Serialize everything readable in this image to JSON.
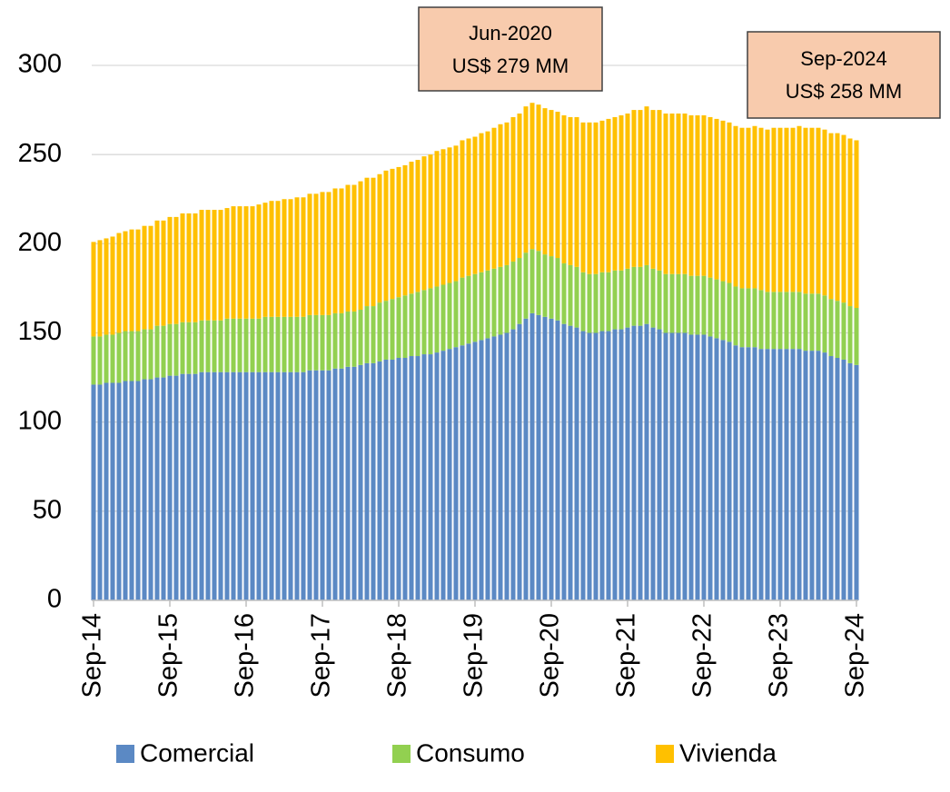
{
  "chart_data": {
    "type": "stacked-bar",
    "categories": [
      "Sep-14",
      null,
      null,
      null,
      null,
      null,
      null,
      null,
      null,
      null,
      null,
      null,
      "Sep-15",
      null,
      null,
      null,
      null,
      null,
      null,
      null,
      null,
      null,
      null,
      null,
      "Sep-16",
      null,
      null,
      null,
      null,
      null,
      null,
      null,
      null,
      null,
      null,
      null,
      "Sep-17",
      null,
      null,
      null,
      null,
      null,
      null,
      null,
      null,
      null,
      null,
      null,
      "Sep-18",
      null,
      null,
      null,
      null,
      null,
      null,
      null,
      null,
      null,
      null,
      null,
      "Sep-19",
      null,
      null,
      null,
      null,
      null,
      null,
      null,
      null,
      null,
      null,
      null,
      "Sep-20",
      null,
      null,
      null,
      null,
      null,
      null,
      null,
      null,
      null,
      null,
      null,
      "Sep-21",
      null,
      null,
      null,
      null,
      null,
      null,
      null,
      null,
      null,
      null,
      null,
      "Sep-22",
      null,
      null,
      null,
      null,
      null,
      null,
      null,
      null,
      null,
      null,
      null,
      "Sep-23",
      null,
      null,
      null,
      null,
      null,
      null,
      null,
      null,
      null,
      null,
      null,
      "Sep-24"
    ],
    "series": [
      {
        "name": "Comercial",
        "color": "#5b89c4",
        "values": [
          121,
          121,
          122,
          122,
          122,
          123,
          123,
          123,
          124,
          124,
          125,
          125,
          126,
          126,
          127,
          127,
          127,
          128,
          128,
          128,
          128,
          128,
          128,
          128,
          128,
          128,
          128,
          128,
          128,
          128,
          128,
          128,
          128,
          128,
          129,
          129,
          129,
          129,
          130,
          130,
          131,
          131,
          132,
          133,
          133,
          134,
          135,
          135,
          136,
          136,
          137,
          137,
          138,
          138,
          139,
          140,
          141,
          142,
          143,
          144,
          145,
          146,
          147,
          148,
          149,
          150,
          152,
          155,
          158,
          161,
          160,
          159,
          158,
          157,
          155,
          154,
          153,
          151,
          150,
          150,
          151,
          151,
          152,
          152,
          153,
          154,
          154,
          155,
          153,
          152,
          150,
          150,
          150,
          150,
          149,
          149,
          149,
          148,
          147,
          146,
          145,
          143,
          142,
          142,
          142,
          141,
          141,
          141,
          141,
          141,
          141,
          141,
          140,
          140,
          140,
          139,
          137,
          136,
          135,
          133,
          132
        ]
      },
      {
        "name": "Consumo",
        "color": "#92d050",
        "values": [
          27,
          27,
          27,
          27,
          28,
          28,
          28,
          28,
          28,
          28,
          29,
          29,
          29,
          29,
          29,
          29,
          29,
          29,
          29,
          29,
          29,
          30,
          30,
          30,
          30,
          30,
          30,
          31,
          31,
          31,
          31,
          31,
          31,
          31,
          31,
          31,
          31,
          31,
          31,
          31,
          31,
          31,
          31,
          32,
          32,
          33,
          33,
          34,
          34,
          35,
          35,
          36,
          36,
          37,
          37,
          37,
          37,
          37,
          38,
          38,
          38,
          38,
          38,
          38,
          38,
          38,
          38,
          37,
          37,
          36,
          36,
          35,
          35,
          35,
          34,
          34,
          34,
          33,
          33,
          33,
          33,
          33,
          33,
          33,
          33,
          33,
          33,
          33,
          33,
          33,
          33,
          33,
          33,
          33,
          33,
          33,
          33,
          33,
          33,
          33,
          33,
          33,
          33,
          33,
          33,
          33,
          32,
          32,
          32,
          32,
          32,
          32,
          32,
          32,
          32,
          32,
          32,
          32,
          32,
          32,
          32
        ]
      },
      {
        "name": "Vivienda",
        "color": "#ffc000",
        "values": [
          53,
          54,
          54,
          55,
          56,
          56,
          57,
          57,
          58,
          58,
          59,
          59,
          60,
          60,
          61,
          61,
          61,
          62,
          62,
          62,
          62,
          62,
          63,
          63,
          63,
          63,
          64,
          64,
          65,
          65,
          66,
          66,
          67,
          67,
          68,
          68,
          69,
          69,
          70,
          70,
          71,
          71,
          72,
          72,
          72,
          72,
          73,
          73,
          73,
          73,
          74,
          74,
          75,
          75,
          76,
          76,
          76,
          76,
          77,
          77,
          77,
          78,
          78,
          79,
          80,
          80,
          81,
          81,
          82,
          82,
          82,
          82,
          82,
          82,
          83,
          83,
          84,
          84,
          85,
          85,
          85,
          86,
          86,
          87,
          87,
          88,
          88,
          89,
          89,
          90,
          90,
          90,
          90,
          90,
          90,
          90,
          90,
          90,
          90,
          90,
          90,
          90,
          90,
          90,
          91,
          91,
          91,
          92,
          92,
          92,
          92,
          93,
          93,
          93,
          93,
          93,
          93,
          94,
          94,
          94,
          94
        ]
      }
    ],
    "ylim": [
      0,
      300
    ],
    "yticks": [
      0,
      50,
      100,
      150,
      200,
      250,
      300
    ],
    "grid": true,
    "legend": "bottom",
    "annotations": [
      {
        "lines": [
          "Jun-2020",
          "US$ 279 MM"
        ],
        "category": "Jun-2020"
      },
      {
        "lines": [
          "Sep-2024",
          "US$ 258 MM"
        ],
        "category": "Sep-2024"
      }
    ]
  }
}
